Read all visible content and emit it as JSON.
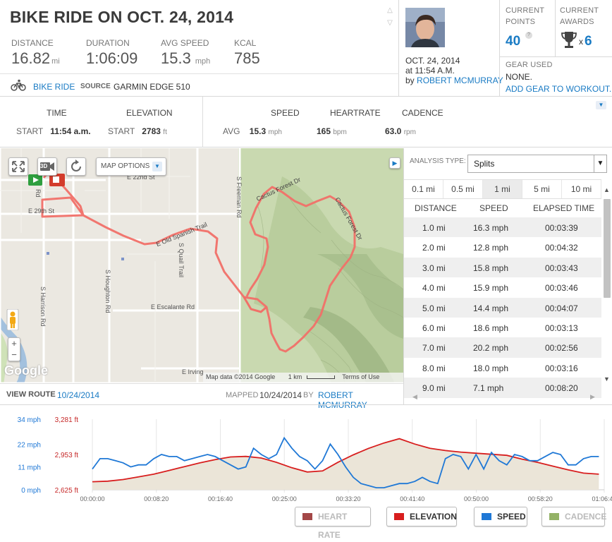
{
  "workout": {
    "title": "BIKE RIDE ON OCT. 24, 2014",
    "stats": [
      {
        "label": "DISTANCE",
        "value": "16.82",
        "unit": "mi"
      },
      {
        "label": "DURATION",
        "value": "1:06:09",
        "unit": ""
      },
      {
        "label": "AVG SPEED",
        "value": "15.3",
        "unit": "mph"
      },
      {
        "label": "KCAL",
        "value": "785",
        "unit": ""
      }
    ],
    "type_link": "BIKE RIDE",
    "source_label": "SOURCE",
    "source_value": "GARMIN EDGE 510",
    "icons": {
      "type": "bicycle-icon",
      "prev": "chevron-up-icon",
      "next": "chevron-down-icon"
    }
  },
  "owner": {
    "date": "OCT. 24, 2014",
    "time": "at 11:54 A.M.",
    "by": "by",
    "name": "ROBERT MCMURRAY"
  },
  "points": {
    "label_line1": "CURRENT",
    "label_line2": "POINTS",
    "value": "40",
    "help": "?"
  },
  "awards": {
    "label_line1": "CURRENT",
    "label_line2": "AWARDS",
    "count_prefix": "x",
    "count": "6",
    "icon": "trophy-icon"
  },
  "gear": {
    "label": "GEAR USED",
    "value": "NONE.",
    "link": "ADD GEAR TO WORKOUT."
  },
  "summary": {
    "time_h": "TIME",
    "time_label": "START",
    "time_value": "11:54 a.m.",
    "elev_h": "ELEVATION",
    "elev_label": "START",
    "elev_value": "2783",
    "elev_unit": "ft",
    "speed_h": "SPEED",
    "avg_label": "AVG",
    "speed_value": "15.3",
    "speed_unit": "mph",
    "hr_h": "HEARTRATE",
    "hr_value": "165",
    "hr_unit": "bpm",
    "cad_h": "CADENCE",
    "cad_value": "63.0",
    "cad_unit": "rpm"
  },
  "map": {
    "options_label": "MAP OPTIONS",
    "btn_3d": "3D",
    "streets": [
      "E 29th St",
      "E Old Spanish Trail",
      "S Quail Trail",
      "S Houghton Rd",
      "S Harrison Rd",
      "E Escalante Rd",
      "S Freeman Rd",
      "Cactus Forest Dr",
      "Cactus Forest Dr",
      "E Irving",
      "Rd",
      "E 22nd St"
    ],
    "attribution": "Map data ©2014 Google",
    "scale": "1 km",
    "terms": "Terms of Use",
    "logo": "Google"
  },
  "route": {
    "view_label": "VIEW ROUTE",
    "view_date": "10/24/2014",
    "mapped_label": "MAPPED",
    "mapped_date": "10/24/2014",
    "by": "BY",
    "name": "ROBERT MCMURRAY"
  },
  "analysis": {
    "type_label": "ANALYSIS TYPE:",
    "selected": "Splits",
    "tabs": [
      "0.1 mi",
      "0.5 mi",
      "1 mi",
      "5 mi",
      "10 mi"
    ],
    "selected_tab": "1 mi",
    "columns": [
      "DISTANCE",
      "SPEED",
      "ELAPSED TIME"
    ],
    "rows": [
      [
        "1.0 mi",
        "16.3 mph",
        "00:03:39"
      ],
      [
        "2.0 mi",
        "12.8 mph",
        "00:04:32"
      ],
      [
        "3.0 mi",
        "15.8 mph",
        "00:03:43"
      ],
      [
        "4.0 mi",
        "15.9 mph",
        "00:03:46"
      ],
      [
        "5.0 mi",
        "14.4 mph",
        "00:04:07"
      ],
      [
        "6.0 mi",
        "18.6 mph",
        "00:03:13"
      ],
      [
        "7.0 mi",
        "20.2 mph",
        "00:02:56"
      ],
      [
        "8.0 mi",
        "18.0 mph",
        "00:03:16"
      ],
      [
        "9.0 mi",
        "7.1 mph",
        "00:08:20"
      ]
    ]
  },
  "chart_data": {
    "type": "line",
    "x_ticks": [
      "00:00:00",
      "00:08:20",
      "00:16:40",
      "00:25:00",
      "00:33:20",
      "00:41:40",
      "00:50:00",
      "00:58:20",
      "01:06:40"
    ],
    "speed_ticks": [
      "34 mph",
      "22 mph",
      "11 mph",
      "0 mph"
    ],
    "elev_ticks": [
      "3,281 ft",
      "2,953 ft",
      "2,625 ft"
    ],
    "speed_range": [
      0,
      34
    ],
    "elev_range": [
      2625,
      3281
    ],
    "x_range_min": [
      0,
      66.7
    ],
    "series": [
      {
        "name": "SPEED",
        "color": "#1f78d6",
        "x": [
          0,
          1,
          2,
          3,
          4,
          5,
          6,
          7,
          8,
          9,
          10,
          11,
          12,
          13,
          14,
          15,
          16,
          17,
          18,
          19,
          20,
          21,
          22,
          23,
          24,
          25,
          26,
          27,
          28,
          29,
          30,
          31,
          32,
          33,
          34,
          35,
          36,
          37,
          38,
          39,
          40,
          41,
          42,
          43,
          44,
          45,
          46,
          47,
          48,
          49,
          50,
          51,
          52,
          53,
          54,
          55,
          56,
          57,
          58,
          59,
          60,
          61,
          62,
          63,
          64,
          65,
          66
        ],
        "y": [
          10,
          15,
          15,
          14,
          13,
          11,
          12,
          12,
          15,
          17,
          16,
          16,
          14,
          15,
          16,
          17,
          16,
          14,
          12,
          10,
          11,
          20,
          17,
          15,
          17,
          25,
          20,
          16,
          14,
          10,
          14,
          22,
          17,
          11,
          6,
          3,
          2,
          1,
          1,
          2,
          3,
          3,
          4,
          6,
          4,
          3,
          15,
          17,
          16,
          10,
          17,
          10,
          18,
          14,
          12,
          17,
          16,
          14,
          14,
          16,
          18,
          17,
          12,
          12,
          15,
          16,
          16
        ]
      },
      {
        "name": "ELEVATION",
        "color": "#d81e1e",
        "x": [
          0,
          2,
          4,
          6,
          8,
          10,
          12,
          14,
          16,
          18,
          20,
          22,
          24,
          26,
          28,
          30,
          32,
          34,
          36,
          38,
          40,
          42,
          44,
          46,
          48,
          50,
          52,
          54,
          56,
          58,
          60,
          62,
          64,
          66
        ],
        "y": [
          2700,
          2705,
          2720,
          2745,
          2770,
          2805,
          2840,
          2875,
          2905,
          2930,
          2935,
          2920,
          2880,
          2830,
          2790,
          2800,
          2880,
          2950,
          3010,
          3060,
          3100,
          3050,
          3010,
          2990,
          2975,
          2965,
          2955,
          2945,
          2910,
          2880,
          2845,
          2810,
          2780,
          2770
        ]
      }
    ],
    "legend": [
      {
        "name": "HEART RATE",
        "color": "#993333",
        "active": false
      },
      {
        "name": "ELEVATION",
        "color": "#d81e1e",
        "active": true
      },
      {
        "name": "SPEED",
        "color": "#1f78d6",
        "active": true
      },
      {
        "name": "CADENCE",
        "color": "#88aa55",
        "active": false
      }
    ],
    "speed_tick_color": "#1f78d6",
    "elev_tick_color": "#c62828"
  }
}
